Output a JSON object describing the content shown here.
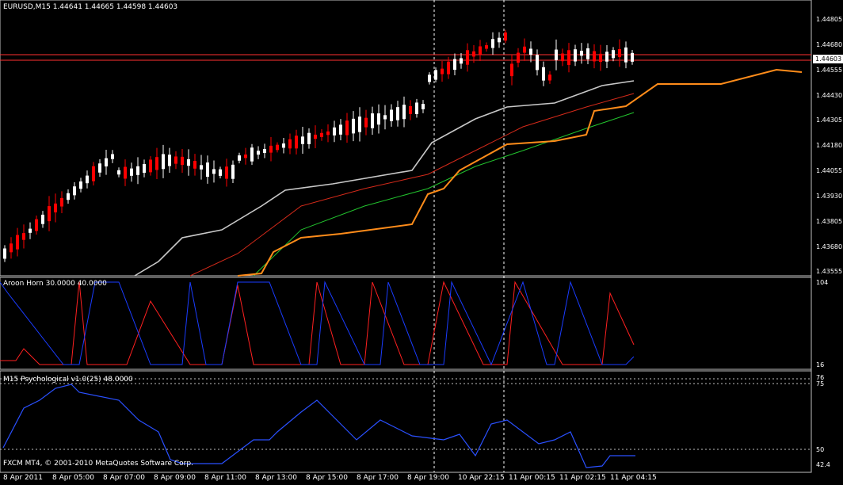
{
  "main": {
    "header": "EURUSD,M15  1.44641 1.44665 1.44598 1.44603",
    "price_axis": [
      "1.44805",
      "1.44680",
      "1.44555",
      "1.44430",
      "1.44305",
      "1.44180",
      "1.44055",
      "1.43930",
      "1.43805",
      "1.43680",
      "1.43555"
    ],
    "current_price": "1.44603"
  },
  "aroon": {
    "header": "Aroon Horn 30.0000 40.0000",
    "axis_top": "104",
    "axis_bottom": "16"
  },
  "psych": {
    "header": "M15 Psychological v1.0(25) 48.0000",
    "axis": [
      "76",
      "75",
      "50",
      "42.4"
    ]
  },
  "footer": {
    "copyright": "FXCM MT4, © 2001-2010 MetaQuotes Software Corp."
  },
  "time_axis": [
    "8 Apr 2011",
    "8 Apr 05:00",
    "8 Apr 07:00",
    "8 Apr 09:00",
    "8 Apr 11:00",
    "8 Apr 13:00",
    "8 Apr 15:00",
    "8 Apr 17:00",
    "8 Apr 19:00",
    "10 Apr 22:15",
    "11 Apr 00:15",
    "11 Apr 02:15",
    "11 Apr 04:15"
  ],
  "colors": {
    "bull": "#ffffff",
    "bear": "#ff0000",
    "bg": "#000000",
    "upper_band": "#c8c8c8",
    "ma_red": "#d42a1a",
    "ma_green": "#22c32e",
    "orange": "#ff8c1a",
    "aroon_up": "#ff2020",
    "aroon_down": "#1a3cff",
    "psych": "#2a50ff",
    "hline": "#ff3030"
  }
}
